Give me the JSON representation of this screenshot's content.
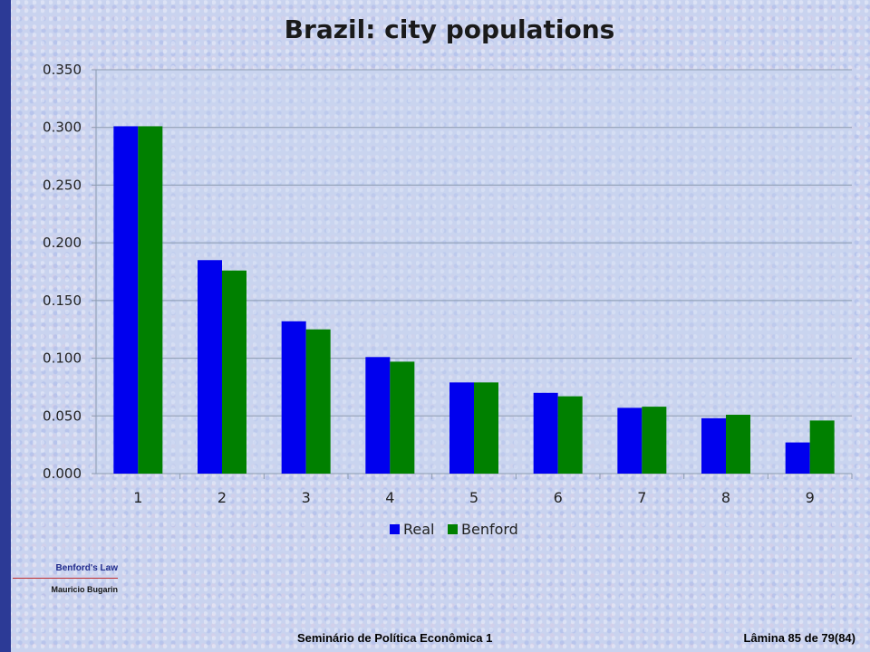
{
  "sidebar": {
    "topic": "Benford's Law",
    "author": "Mauricio Bugarin"
  },
  "footer": {
    "course": "Seminário de Política Econômica 1",
    "slide": "Lâmina 85 de 79(84)"
  },
  "colors": {
    "real": "#0000ee",
    "benford": "#008000",
    "grid": "#8c9bb0",
    "axis_text": "#222222"
  },
  "chart_data": {
    "type": "bar",
    "title": "Brazil: city populations",
    "xlabel": "",
    "ylabel": "",
    "categories": [
      "1",
      "2",
      "3",
      "4",
      "5",
      "6",
      "7",
      "8",
      "9"
    ],
    "series": [
      {
        "name": "Real",
        "values": [
          0.301,
          0.185,
          0.132,
          0.101,
          0.079,
          0.07,
          0.057,
          0.048,
          0.027
        ]
      },
      {
        "name": "Benford",
        "values": [
          0.301,
          0.176,
          0.125,
          0.097,
          0.079,
          0.067,
          0.058,
          0.051,
          0.046
        ]
      }
    ],
    "ylim": [
      0,
      0.35
    ],
    "yticks": [
      "0.000",
      "0.050",
      "0.100",
      "0.150",
      "0.200",
      "0.250",
      "0.300",
      "0.350"
    ],
    "grid": true,
    "legend_position": "bottom"
  }
}
